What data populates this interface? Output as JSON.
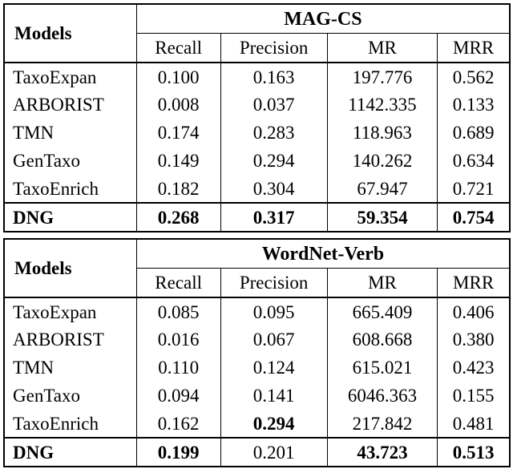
{
  "tables": [
    {
      "models_header": "Models",
      "dataset": "MAG-CS",
      "columns": [
        "Recall",
        "Precision",
        "MR",
        "MRR"
      ],
      "rows": [
        {
          "model": "TaxoExpan",
          "values": [
            "0.100",
            "0.163",
            "197.776",
            "0.562"
          ]
        },
        {
          "model": "ARBORIST",
          "values": [
            "0.008",
            "0.037",
            "1142.335",
            "0.133"
          ]
        },
        {
          "model": "TMN",
          "values": [
            "0.174",
            "0.283",
            "118.963",
            "0.689"
          ]
        },
        {
          "model": "GenTaxo",
          "values": [
            "0.149",
            "0.294",
            "140.262",
            "0.634"
          ]
        },
        {
          "model": "TaxoEnrich",
          "values": [
            "0.182",
            "0.304",
            "67.947",
            "0.721"
          ]
        },
        {
          "model": "DNG",
          "values": [
            "0.268",
            "0.317",
            "59.354",
            "0.754"
          ]
        }
      ]
    },
    {
      "models_header": "Models",
      "dataset": "WordNet-Verb",
      "columns": [
        "Recall",
        "Precision",
        "MR",
        "MRR"
      ],
      "rows": [
        {
          "model": "TaxoExpan",
          "values": [
            "0.085",
            "0.095",
            "665.409",
            "0.406"
          ]
        },
        {
          "model": "ARBORIST",
          "values": [
            "0.016",
            "0.067",
            "608.668",
            "0.380"
          ]
        },
        {
          "model": "TMN",
          "values": [
            "0.110",
            "0.124",
            "615.021",
            "0.423"
          ]
        },
        {
          "model": "GenTaxo",
          "values": [
            "0.094",
            "0.141",
            "6046.363",
            "0.155"
          ]
        },
        {
          "model": "TaxoEnrich",
          "values": [
            "0.162",
            "0.294",
            "217.842",
            "0.481"
          ]
        },
        {
          "model": "DNG",
          "values": [
            "0.199",
            "0.201",
            "43.723",
            "0.513"
          ]
        }
      ]
    }
  ]
}
